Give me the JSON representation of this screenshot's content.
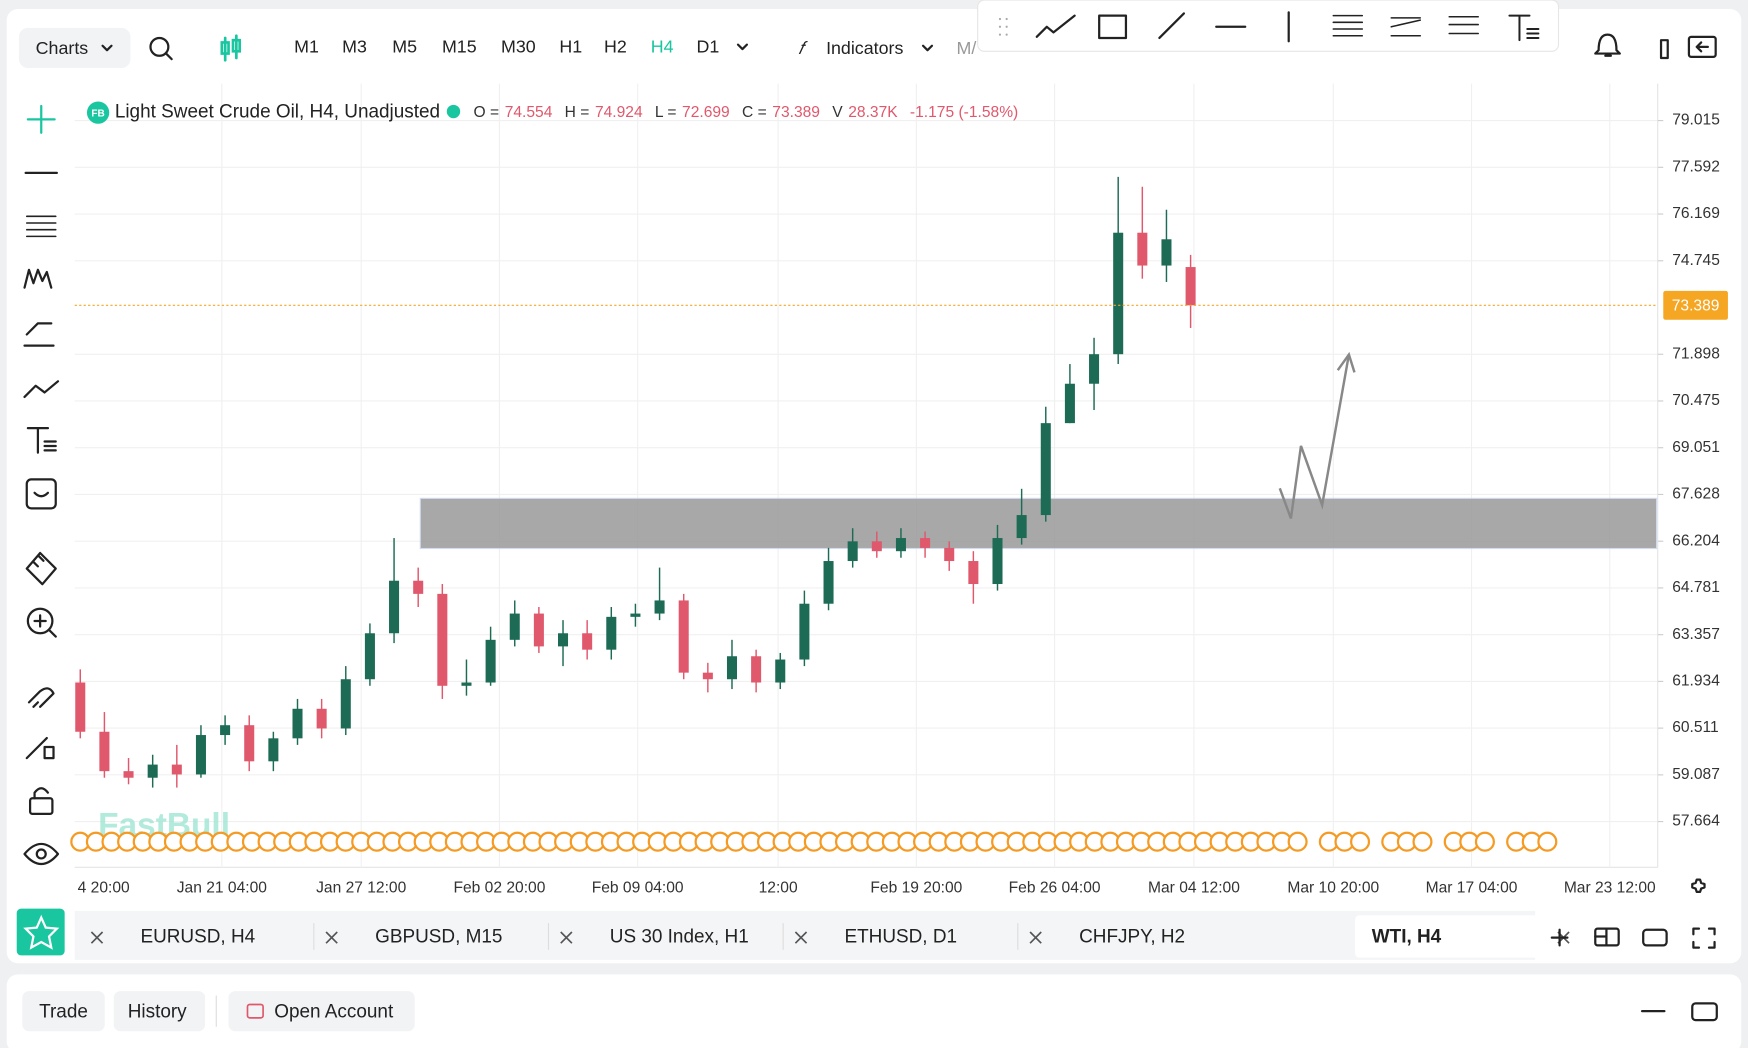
{
  "toolbar": {
    "charts": "Charts",
    "timeframes": [
      {
        "label": "M1"
      },
      {
        "label": "M3"
      },
      {
        "label": "M5"
      },
      {
        "label": "M15"
      },
      {
        "label": "M30"
      },
      {
        "label": "H1"
      },
      {
        "label": "H2"
      },
      {
        "label": "H4",
        "active": true
      },
      {
        "label": "D1"
      }
    ],
    "indicators": "Indicators"
  },
  "chart_data": {
    "type": "candlestick",
    "title": "Light Sweet Crude Oil, H4, Unadjusted",
    "legend": [
      {
        "label": "O =",
        "value": 74.554
      },
      {
        "label": "H =",
        "value": 74.924
      },
      {
        "label": "L =",
        "value": 72.699
      },
      {
        "label": "C =",
        "value": 73.389
      },
      {
        "label": "V",
        "value": 28370,
        "value_label": "28.37K"
      }
    ],
    "change": "-1.175 (-1.58%)",
    "ylim": [
      56.27,
      80.14
    ],
    "yticks": [
      57.664,
      59.087,
      60.511,
      61.934,
      63.357,
      64.781,
      66.204,
      67.628,
      69.051,
      70.475,
      71.898,
      74.745,
      76.169,
      77.592,
      79.015
    ],
    "x_labels": [
      "4 20:00",
      "Jan 21 04:00",
      "Jan 27 12:00",
      "Feb 02 20:00",
      "Feb 09 04:00",
      "12:00",
      "Feb 19 20:00",
      "Feb 26 04:00",
      "Mar 04 12:00",
      "Mar 10 20:00",
      "Mar 17 04:00",
      "Mar 23 12:00"
    ],
    "grid": true,
    "up_color": "#1d6b55",
    "down_color": "#e0586c",
    "last_price_color": "#f5a623",
    "watermark": "FastBull",
    "candles": {
      "open": [
        61.9,
        60.4,
        59.2,
        59.0,
        59.4,
        59.1,
        60.3,
        60.6,
        59.5,
        60.2,
        61.1,
        60.5,
        62.0,
        63.4,
        65.0,
        64.6,
        61.8,
        61.9,
        63.2,
        64.0,
        63.0,
        63.4,
        62.9,
        63.9,
        64.0,
        64.4,
        62.2,
        62.0,
        62.7,
        61.9,
        62.6,
        64.3,
        65.6,
        66.2,
        65.9,
        66.3,
        66.0,
        65.6,
        64.9,
        66.3,
        67.0,
        69.8,
        71.0,
        71.9,
        75.6,
        74.6,
        74.554
      ],
      "high": [
        62.3,
        61.0,
        59.6,
        59.7,
        60.0,
        60.6,
        60.9,
        60.9,
        60.4,
        61.4,
        61.4,
        62.4,
        63.7,
        66.3,
        65.4,
        64.9,
        62.6,
        63.6,
        64.4,
        64.2,
        63.8,
        63.8,
        64.2,
        64.3,
        65.4,
        64.6,
        62.5,
        63.2,
        62.9,
        62.8,
        64.7,
        66.0,
        66.6,
        66.5,
        66.6,
        66.5,
        66.2,
        65.9,
        66.7,
        67.8,
        70.3,
        71.6,
        72.4,
        77.3,
        77.0,
        76.3,
        74.924
      ],
      "low": [
        60.2,
        59.0,
        58.8,
        58.7,
        58.7,
        59.0,
        60.0,
        59.2,
        59.2,
        60.0,
        60.2,
        60.3,
        61.8,
        63.1,
        64.2,
        61.4,
        61.5,
        61.8,
        63.0,
        62.8,
        62.4,
        62.6,
        62.6,
        63.6,
        63.8,
        62.0,
        61.6,
        61.7,
        61.6,
        61.7,
        62.4,
        64.1,
        65.4,
        65.7,
        65.7,
        65.7,
        65.3,
        64.3,
        64.7,
        66.1,
        66.8,
        69.8,
        70.2,
        71.6,
        74.2,
        74.1,
        72.699
      ],
      "close": [
        60.4,
        59.2,
        59.0,
        59.4,
        59.1,
        60.3,
        60.6,
        59.5,
        60.2,
        61.1,
        60.5,
        62.0,
        63.4,
        65.0,
        64.6,
        61.8,
        61.9,
        63.2,
        64.0,
        63.0,
        63.4,
        62.9,
        63.9,
        64.0,
        64.4,
        62.2,
        62.0,
        62.7,
        61.9,
        62.6,
        64.3,
        65.6,
        66.2,
        65.9,
        66.3,
        66.0,
        65.6,
        64.9,
        66.3,
        67.0,
        69.8,
        71.0,
        71.9,
        75.6,
        74.6,
        75.4,
        73.389
      ]
    }
  },
  "tabs": [
    {
      "label": "EURUSD, H4"
    },
    {
      "label": "GBPUSD, M15"
    },
    {
      "label": "US 30 Index, H1"
    },
    {
      "label": "ETHUSD, D1"
    },
    {
      "label": "CHFJPY, H2"
    },
    {
      "label": "WTI, H4",
      "active": true
    }
  ],
  "bottom_bar": {
    "buttons": [
      "Trade",
      "History",
      "Open Account"
    ]
  }
}
